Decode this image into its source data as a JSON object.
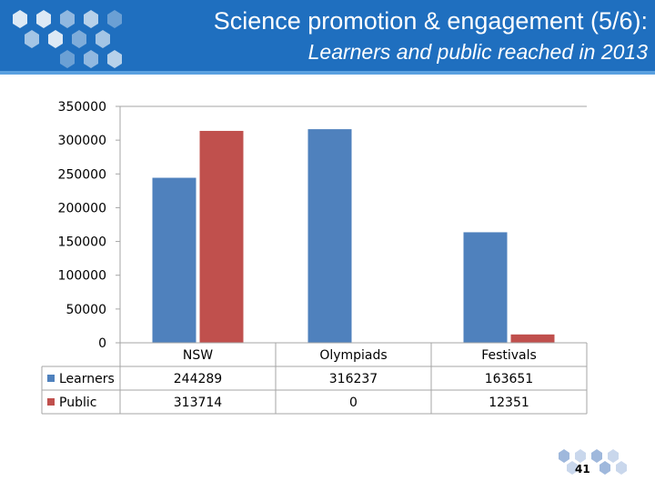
{
  "header": {
    "title": "Science promotion & engagement (5/6):",
    "subtitle": "Learners and public reached in 2013"
  },
  "chart_data": {
    "type": "bar",
    "categories": [
      "NSW",
      "Olympiads",
      "Festivals"
    ],
    "series": [
      {
        "name": "Learners",
        "color": "#4f81bd",
        "values": [
          244289,
          316237,
          163651
        ]
      },
      {
        "name": "Public",
        "color": "#c0504d",
        "values": [
          313714,
          0,
          12351
        ]
      }
    ],
    "ylim": [
      0,
      350000
    ],
    "yticks": [
      "0",
      "50000",
      "100000",
      "150000",
      "200000",
      "250000",
      "300000",
      "350000"
    ],
    "table_values": {
      "Learners": [
        "244289",
        "316237",
        "163651"
      ],
      "Public": [
        "313714",
        "0",
        "12351"
      ]
    },
    "grid": false,
    "legend": "data-table"
  },
  "footer": {
    "page_number": "41"
  }
}
